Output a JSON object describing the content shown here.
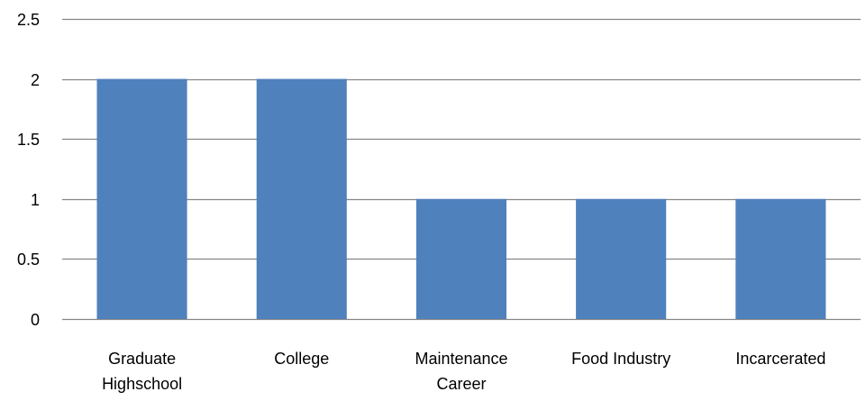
{
  "chart_data": {
    "type": "bar",
    "categories": [
      "Graduate Highschool",
      "College",
      "Maintenance Career",
      "Food Industry",
      "Incarcerated"
    ],
    "category_label_lines": [
      [
        "Graduate",
        "Highschool"
      ],
      [
        "College"
      ],
      [
        "Maintenance",
        "Career"
      ],
      [
        "Food Industry"
      ],
      [
        "Incarcerated"
      ]
    ],
    "values": [
      2,
      2,
      1,
      1,
      1
    ],
    "yticks": [
      0,
      0.5,
      1,
      1.5,
      2,
      2.5
    ],
    "ytick_labels": [
      "0",
      "0.5",
      "1",
      "1.5",
      "2",
      "2.5"
    ],
    "ylim": [
      0,
      2.5
    ],
    "title": "",
    "xlabel": "",
    "ylabel": "",
    "grid": true,
    "legend": "none",
    "colors": {
      "bar": "#4F81BD",
      "grid": "#868686",
      "text": "#000000"
    }
  }
}
